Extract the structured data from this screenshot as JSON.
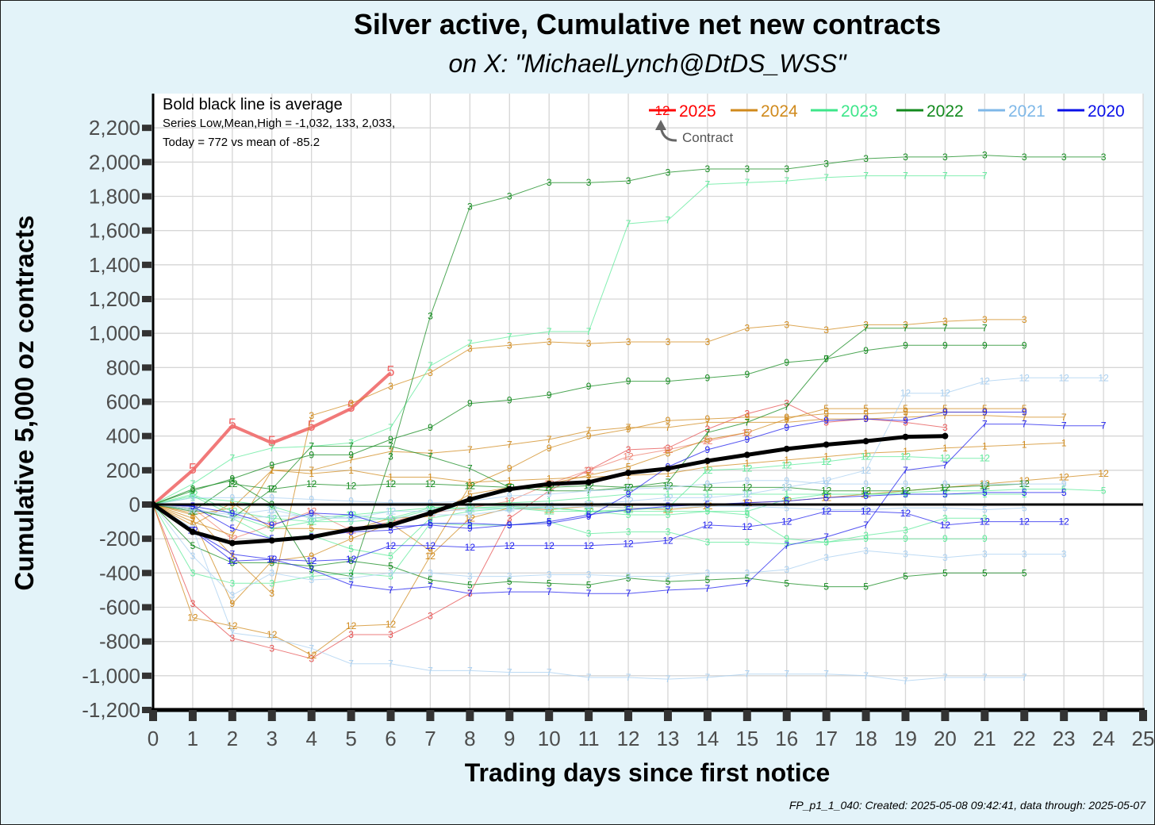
{
  "title": "Silver active, Cumulative net new contracts",
  "subtitle": "on X:   \"MichaelLynch@DtDS_WSS\"",
  "footer": "FP_p1_1_040: Created: 2025-05-08 09:42:41, data through: 2025-05-07",
  "annotations": {
    "average_note": "Bold black line is average",
    "stats_line": "Series Low,Mean,High = -1,032,    133, 2,033,",
    "today_line": "Today = 772 vs mean of -85.2",
    "legend_marker": "12",
    "contract_label": "Contract"
  },
  "chart_data": {
    "type": "line",
    "title": "Silver active, Cumulative net new contracts",
    "subtitle": "on X:   \"MichaelLynch@DtDS_WSS\"",
    "xlabel": "Trading days since first notice",
    "ylabel": "Cumulative 5,000 oz contracts",
    "xlim": [
      0,
      25
    ],
    "ylim": [
      -1200,
      2400
    ],
    "x_ticks": [
      0,
      1,
      2,
      3,
      4,
      5,
      6,
      7,
      8,
      9,
      10,
      11,
      12,
      13,
      14,
      15,
      16,
      17,
      18,
      19,
      20,
      21,
      22,
      23,
      24,
      25
    ],
    "y_ticks": [
      -1200,
      -1000,
      -800,
      -600,
      -400,
      -200,
      0,
      200,
      400,
      600,
      800,
      1000,
      1200,
      1400,
      1600,
      1800,
      2000,
      2200
    ],
    "y_tick_labels": [
      "-1,200",
      "-1,000",
      "-800",
      "-600",
      "-400",
      "-200",
      "0",
      "200",
      "400",
      "600",
      "800",
      "1,000",
      "1,200",
      "1,400",
      "1,600",
      "1,800",
      "2,000",
      "2,200"
    ],
    "grid": true,
    "legend_position": "top-right",
    "legend": [
      {
        "name": "2025",
        "color": "#ff0000"
      },
      {
        "name": "2024",
        "color": "#d08a1c"
      },
      {
        "name": "2023",
        "color": "#3ee68a"
      },
      {
        "name": "2022",
        "color": "#138a1e"
      },
      {
        "name": "2021",
        "color": "#7fb8e8"
      },
      {
        "name": "2020",
        "color": "#0a10e8"
      }
    ],
    "series": [
      {
        "year": "2025",
        "month": "5",
        "color": "#f06a6a",
        "bold": true,
        "y": [
          0,
          200,
          460,
          360,
          450,
          560,
          770
        ]
      },
      {
        "year": "2025",
        "month": "3",
        "color": "#e65050",
        "y": [
          0,
          -580,
          -780,
          -840,
          -900,
          -760,
          -760,
          -650,
          -520,
          -80,
          80,
          200,
          320,
          330,
          440,
          530,
          590,
          480,
          500,
          480,
          450
        ]
      },
      {
        "year": "2025",
        "month": "12",
        "color": "#ee8070",
        "y": [
          0,
          -20,
          -200,
          -120,
          -40,
          -150,
          -100,
          -50,
          -20,
          20,
          120,
          200,
          280,
          320,
          370,
          420
        ]
      },
      {
        "year": "2024",
        "month": "12",
        "color": "#d08a1c",
        "y": [
          0,
          -660,
          -710,
          -760,
          -880,
          -710,
          -700,
          -300,
          -80,
          -20,
          -30,
          -10,
          -20,
          -30,
          -10,
          10,
          20,
          40,
          60,
          80,
          100,
          120,
          140,
          160,
          180
        ]
      },
      {
        "year": "2024",
        "month": "3",
        "color": "#d08a1c",
        "y": [
          0,
          -50,
          -300,
          -520,
          520,
          590,
          690,
          770,
          910,
          930,
          950,
          940,
          950,
          950,
          950,
          1030,
          1050,
          1020,
          1050,
          1050,
          1070,
          1080,
          1080
        ]
      },
      {
        "year": "2024",
        "month": "9",
        "color": "#d08a1c",
        "y": [
          0,
          -80,
          -580,
          -330,
          -300,
          -200,
          -110,
          -270,
          110,
          210,
          330,
          400,
          440,
          490,
          500,
          510,
          510,
          530,
          530,
          540,
          540,
          540
        ]
      },
      {
        "year": "2024",
        "month": "7",
        "color": "#d08a1c",
        "y": [
          0,
          -100,
          -180,
          200,
          200,
          260,
          310,
          300,
          320,
          350,
          380,
          430,
          450,
          450,
          480,
          480,
          480,
          500,
          500,
          510,
          520,
          520,
          510,
          510
        ]
      },
      {
        "year": "2024",
        "month": "5",
        "color": "#d08a1c",
        "y": [
          0,
          -120,
          10,
          -140,
          -140,
          -150,
          -80,
          -70,
          60,
          100,
          120,
          170,
          220,
          300,
          380,
          420,
          500,
          560,
          560,
          560,
          560,
          560,
          560
        ]
      },
      {
        "year": "2024",
        "month": "1",
        "color": "#d08a1c",
        "y": [
          0,
          -60,
          -20,
          200,
          180,
          200,
          160,
          160,
          130,
          140,
          150,
          160,
          170,
          180,
          220,
          240,
          260,
          280,
          300,
          310,
          330,
          340,
          350,
          360
        ]
      },
      {
        "year": "2023",
        "month": "7",
        "color": "#5eea9a",
        "y": [
          0,
          120,
          270,
          330,
          340,
          360,
          450,
          810,
          940,
          980,
          1010,
          1010,
          1640,
          1660,
          1870,
          1880,
          1890,
          1910,
          1920,
          1920,
          1920,
          1920
        ]
      },
      {
        "year": "2023",
        "month": "12",
        "color": "#5eea9a",
        "y": [
          0,
          60,
          -40,
          -80,
          -100,
          -60,
          -90,
          -30,
          -20,
          -20,
          -40,
          -40,
          -30,
          -20,
          200,
          210,
          230,
          250,
          280,
          280,
          270,
          270
        ]
      },
      {
        "year": "2023",
        "month": "9",
        "color": "#5eea9a",
        "y": [
          0,
          50,
          -60,
          -140,
          -100,
          -100,
          -80,
          -20,
          -20,
          -10,
          -20,
          -40,
          -40,
          -40,
          -40,
          -60,
          -200,
          -220,
          -200,
          -200,
          -200,
          -200
        ]
      },
      {
        "year": "2023",
        "month": "3",
        "color": "#5eea9a",
        "y": [
          0,
          -400,
          -460,
          -460,
          -420,
          -400,
          -420,
          -110,
          -120,
          -120,
          -100,
          -170,
          -160,
          -160,
          -220,
          -220,
          -230,
          -220,
          -180,
          -150,
          -80,
          -80
        ]
      },
      {
        "year": "2023",
        "month": "5",
        "color": "#5eea9a",
        "y": [
          0,
          -30,
          -80,
          -200,
          -180,
          -260,
          -300,
          -80,
          -40,
          -20,
          -20,
          -40,
          -60,
          -60,
          -40,
          -40,
          30,
          60,
          60,
          70,
          80,
          80,
          90,
          90,
          80
        ]
      },
      {
        "year": "2023",
        "month": "1",
        "color": "#5eea9a",
        "y": [
          0,
          40,
          20,
          -10,
          -80,
          -60,
          -40,
          -20,
          0,
          10,
          20,
          40,
          60,
          60,
          60,
          60,
          60,
          60,
          60,
          60,
          60,
          60,
          60
        ]
      },
      {
        "year": "2022",
        "month": "3",
        "color": "#138a1e",
        "y": [
          0,
          90,
          140,
          0,
          -380,
          -420,
          280,
          1100,
          1740,
          1800,
          1880,
          1880,
          1890,
          1940,
          1960,
          1960,
          1960,
          1990,
          2020,
          2030,
          2030,
          2040,
          2030,
          2030,
          2030
        ]
      },
      {
        "year": "2022",
        "month": "9",
        "color": "#138a1e",
        "y": [
          0,
          80,
          150,
          230,
          290,
          290,
          380,
          450,
          590,
          610,
          640,
          690,
          720,
          720,
          740,
          760,
          830,
          850,
          900,
          930,
          930,
          930,
          930
        ]
      },
      {
        "year": "2022",
        "month": "7",
        "color": "#138a1e",
        "y": [
          0,
          -30,
          -80,
          90,
          340,
          340,
          340,
          280,
          210,
          100,
          80,
          80,
          100,
          130,
          420,
          480,
          570,
          850,
          1030,
          1030,
          1030,
          1030
        ]
      },
      {
        "year": "2022",
        "month": "12",
        "color": "#138a1e",
        "y": [
          0,
          -40,
          120,
          90,
          120,
          110,
          120,
          120,
          110,
          100,
          100,
          110,
          100,
          110,
          100,
          100,
          100,
          80,
          80,
          80,
          100,
          110,
          120
        ]
      },
      {
        "year": "2022",
        "month": "5",
        "color": "#138a1e",
        "y": [
          0,
          -240,
          -340,
          -340,
          -360,
          -330,
          -360,
          -440,
          -470,
          -450,
          -460,
          -470,
          -430,
          -450,
          -440,
          -430,
          -460,
          -480,
          -480,
          -420,
          -400,
          -400,
          -400
        ]
      },
      {
        "year": "2021",
        "month": "7",
        "color": "#a8cff0",
        "y": [
          0,
          -140,
          -750,
          -780,
          -840,
          -930,
          -930,
          -970,
          -970,
          -980,
          -980,
          -1010,
          -1010,
          -1020,
          -1010,
          -990,
          -990,
          -990,
          -1000,
          -1030,
          -1010,
          -1010,
          -1010
        ]
      },
      {
        "year": "2021",
        "month": "3",
        "color": "#a8cff0",
        "y": [
          0,
          -300,
          -530,
          -400,
          -440,
          -430,
          -400,
          -400,
          -420,
          -420,
          -410,
          -410,
          -420,
          -420,
          -400,
          -400,
          -380,
          -310,
          -270,
          -290,
          -310,
          -290,
          -290,
          -290
        ]
      },
      {
        "year": "2021",
        "month": "12",
        "color": "#a8cff0",
        "y": [
          0,
          -30,
          -60,
          -30,
          -80,
          -80,
          -40,
          -40,
          -30,
          -20,
          -10,
          0,
          20,
          40,
          40,
          60,
          100,
          140,
          200,
          650,
          650,
          720,
          740,
          740,
          740
        ]
      },
      {
        "year": "2021",
        "month": "9",
        "color": "#a8cff0",
        "y": [
          0,
          40,
          40,
          40,
          30,
          20,
          10,
          10,
          20,
          50,
          60,
          80,
          90,
          100,
          120,
          140,
          140,
          120,
          120,
          120,
          120,
          120,
          120,
          120
        ]
      },
      {
        "year": "2021",
        "month": "5",
        "color": "#a8cff0",
        "y": [
          0,
          -20,
          -80,
          -70,
          -60,
          -80,
          -80,
          -60,
          -60,
          -30,
          -20,
          -10,
          -20,
          -20,
          -10,
          -10,
          -20,
          -30,
          -30,
          -20,
          -20,
          -30,
          -20
        ]
      },
      {
        "year": "2020",
        "month": "7",
        "color": "#2020ee",
        "y": [
          0,
          -150,
          -290,
          -320,
          -380,
          -470,
          -500,
          -480,
          -520,
          -510,
          -510,
          -520,
          -520,
          -500,
          -490,
          -460,
          -240,
          -190,
          -120,
          200,
          230,
          470,
          470,
          460,
          460
        ]
      },
      {
        "year": "2020",
        "month": "12",
        "color": "#2020ee",
        "y": [
          0,
          -150,
          -330,
          -320,
          -330,
          -320,
          -240,
          -240,
          -250,
          -240,
          -240,
          -240,
          -230,
          -210,
          -120,
          -130,
          -100,
          -40,
          -40,
          -50,
          -120,
          -100,
          -100,
          -100
        ]
      },
      {
        "year": "2020",
        "month": "9",
        "color": "#2020ee",
        "y": [
          0,
          -10,
          -50,
          -120,
          -50,
          -60,
          -130,
          -120,
          -140,
          -120,
          -110,
          -70,
          60,
          220,
          320,
          380,
          450,
          490,
          500,
          490,
          540,
          540,
          540
        ]
      },
      {
        "year": "2020",
        "month": "5",
        "color": "#2020ee",
        "y": [
          0,
          -10,
          -140,
          -200,
          -190,
          -160,
          -150,
          -110,
          -110,
          -120,
          -100,
          -60,
          -30,
          -10,
          0,
          10,
          20,
          40,
          50,
          60,
          60,
          70,
          70,
          70
        ]
      }
    ],
    "average": {
      "color": "#000000",
      "y": [
        0,
        -160,
        -225,
        -210,
        -190,
        -145,
        -120,
        -50,
        30,
        90,
        120,
        130,
        185,
        210,
        255,
        290,
        325,
        350,
        370,
        395,
        400
      ]
    }
  }
}
